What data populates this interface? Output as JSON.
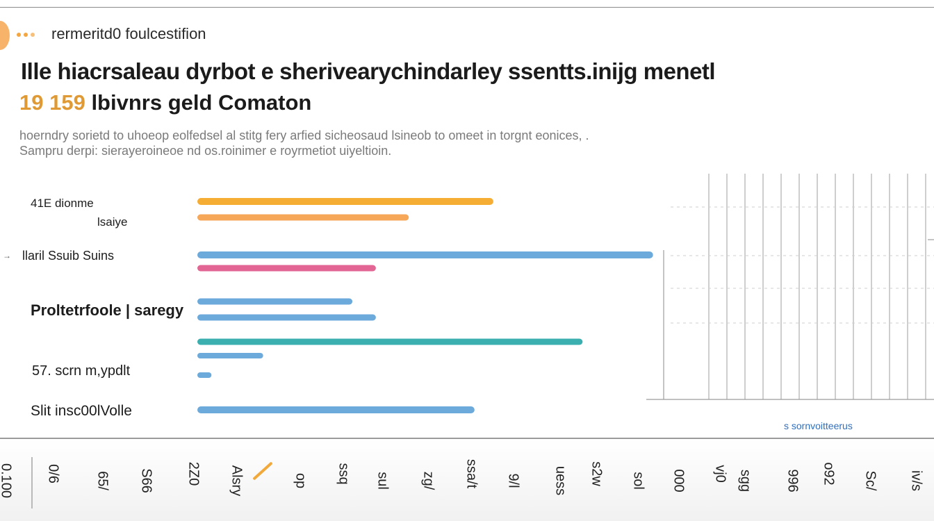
{
  "header": {
    "brand": "rermeritd0 foulcestifion",
    "title": "Ille hiacrsaleau dyrbot e sherivearychindarley ssentts.inijg menetl",
    "subtitle_num": "19 159",
    "subtitle_text": " lbivnrs geld Comaton",
    "description": "hoerndry sorietd to uhoeop eolfedsel al stitg fery arfied sicheosaud lsineob to omeet in torgnt eonices, . Sampru derpi: sierayeroineoe nd os.roinimer e royrmetiot uiyeltioin."
  },
  "footnote": "s sornvoitteerus",
  "colors": {
    "orange": "#f5a623",
    "light_orange": "#f5a04a",
    "blue": "#5fa3d8",
    "pink": "#e0588a",
    "teal": "#2aa8a8",
    "grid": "#9c9c9c"
  },
  "chart_data": {
    "type": "bar",
    "orientation": "horizontal",
    "categories": [
      "41E dionme",
      "lsaiye",
      "llaril Ssuib Suins",
      "Proltetrfoole | saregy",
      "57. scrn m,ypdlt",
      "Slit insc00lVolle"
    ],
    "bars": [
      {
        "category_index": 0,
        "value": 63,
        "color": "orange"
      },
      {
        "category_index": 1,
        "value": 45,
        "color": "light_orange"
      },
      {
        "category_index": 2,
        "value": 97,
        "color": "blue"
      },
      {
        "category_index": 2,
        "value": 38,
        "color": "pink"
      },
      {
        "category_index": 3,
        "value": 33,
        "color": "blue"
      },
      {
        "category_index": 3,
        "value": 38,
        "color": "blue"
      },
      {
        "category_index": 3,
        "value": 82,
        "color": "teal"
      },
      {
        "category_index": 4,
        "value": 14,
        "color": "blue"
      },
      {
        "category_index": 4,
        "value": 3,
        "color": "blue"
      },
      {
        "category_index": 5,
        "value": 59,
        "color": "blue"
      }
    ],
    "xlim": [
      0,
      100
    ],
    "x_tick_labels": [
      "0.100",
      "0/6",
      "65/",
      "S66",
      "2Z0",
      "Alsry",
      "op",
      "ssq",
      "sul",
      "zg/",
      "ssa/t",
      "9/l",
      "uess",
      "s2w",
      "sol",
      "000",
      "vj0",
      "sgg",
      "996",
      "o92",
      "Sc/",
      "iv/s"
    ]
  }
}
